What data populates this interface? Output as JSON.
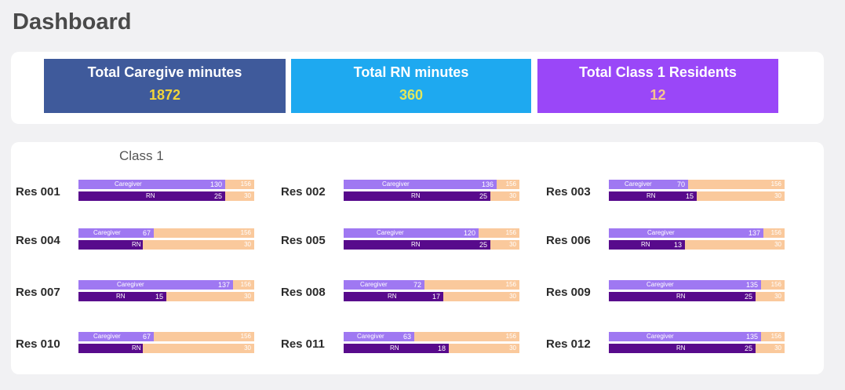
{
  "page": {
    "title": "Dashboard"
  },
  "kpis": [
    {
      "label": "Total Caregive minutes",
      "value": "1872",
      "bg": "#3f5a9b",
      "value_color": "#f1d43a"
    },
    {
      "label": "Total RN minutes",
      "value": "360",
      "bg": "#1ea9f0",
      "value_color": "#e3e75a"
    },
    {
      "label": "Total Class 1 Residents",
      "value": "12",
      "bg": "#9a47f8",
      "value_color": "#f6c48e"
    }
  ],
  "colors": {
    "caregiver_bar": "#9f78f2",
    "rn_bar": "#580a8c",
    "target_bar": "#fac99c"
  },
  "chart_data": {
    "type": "bar",
    "title": "Class 1",
    "caregiver_label": "Caregiver",
    "rn_label": "RN",
    "caregiver_max": 156,
    "rn_max": 30,
    "residents": [
      {
        "name": "Res 001",
        "caregiver": 130,
        "rn": 25
      },
      {
        "name": "Res 002",
        "caregiver": 136,
        "rn": 25
      },
      {
        "name": "Res 003",
        "caregiver": 70,
        "rn": 15
      },
      {
        "name": "Res 004",
        "caregiver": 67,
        "rn": null
      },
      {
        "name": "Res 005",
        "caregiver": 120,
        "rn": 25
      },
      {
        "name": "Res 006",
        "caregiver": 137,
        "rn": 13
      },
      {
        "name": "Res 007",
        "caregiver": 137,
        "rn": 15
      },
      {
        "name": "Res 008",
        "caregiver": 72,
        "rn": 17
      },
      {
        "name": "Res 009",
        "caregiver": 135,
        "rn": 25
      },
      {
        "name": "Res 010",
        "caregiver": 67,
        "rn": null
      },
      {
        "name": "Res 011",
        "caregiver": 63,
        "rn": 18
      },
      {
        "name": "Res 012",
        "caregiver": 135,
        "rn": 25
      }
    ]
  }
}
